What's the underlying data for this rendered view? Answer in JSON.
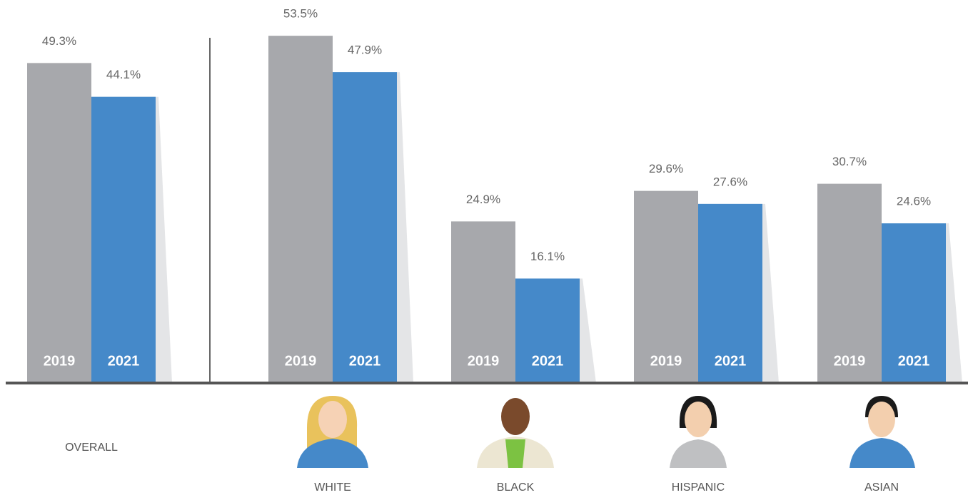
{
  "chart_data": {
    "type": "bar",
    "categories": [
      "OVERALL",
      "WHITE",
      "BLACK",
      "HISPANIC",
      "ASIAN"
    ],
    "series": [
      {
        "name": "2019",
        "color": "#a7a8ac",
        "values": [
          49.3,
          53.5,
          24.9,
          29.6,
          30.7
        ],
        "value_labels": [
          "49.3%",
          "53.5%",
          "24.9%",
          "29.6%",
          "30.7%"
        ]
      },
      {
        "name": "2021",
        "color": "#4589c9",
        "values": [
          44.1,
          47.9,
          16.1,
          27.6,
          24.6
        ],
        "value_labels": [
          "44.1%",
          "47.9%",
          "16.1%",
          "27.6%",
          "24.6%"
        ]
      }
    ]
  }
}
